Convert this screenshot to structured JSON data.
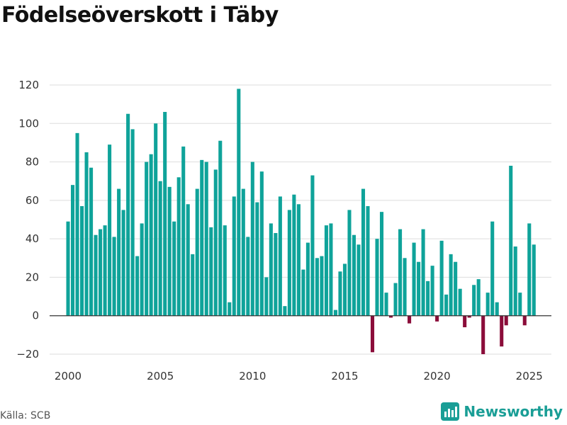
{
  "chart_data": {
    "type": "bar",
    "title": "Födelseöverskott i Täby",
    "xlabel": "",
    "ylabel": "",
    "ylim": [
      -20,
      120
    ],
    "yticks": [
      -20,
      0,
      20,
      40,
      60,
      80,
      100,
      120
    ],
    "xlim": [
      1999.0,
      2026.2
    ],
    "xticks": [
      2000,
      2005,
      2010,
      2015,
      2020,
      2025
    ],
    "grid": true,
    "start_year": 2000,
    "periods_per_year": 4,
    "positive_color": "#0fa39a",
    "negative_color": "#8b0d3a",
    "values": [
      49,
      68,
      95,
      57,
      85,
      77,
      42,
      45,
      47,
      89,
      41,
      66,
      55,
      105,
      97,
      31,
      48,
      80,
      84,
      100,
      70,
      106,
      67,
      49,
      72,
      88,
      58,
      32,
      66,
      81,
      80,
      46,
      76,
      91,
      47,
      7,
      62,
      118,
      66,
      41,
      80,
      59,
      75,
      20,
      48,
      43,
      62,
      5,
      55,
      63,
      58,
      24,
      38,
      73,
      30,
      31,
      47,
      48,
      3,
      23,
      27,
      55,
      42,
      37,
      66,
      57,
      -19,
      40,
      54,
      12,
      -1,
      17,
      45,
      30,
      -4,
      38,
      28,
      45,
      18,
      26,
      -3,
      39,
      11,
      32,
      28,
      14,
      -6,
      -1,
      16,
      19,
      -20,
      12,
      49,
      7,
      -16,
      -5,
      78,
      36,
      12,
      -5,
      48,
      37
    ]
  },
  "source": "Källa: SCB",
  "brand": {
    "name": "Newsworthy",
    "icon": "bar-chart-icon",
    "color": "#1a9e96"
  }
}
